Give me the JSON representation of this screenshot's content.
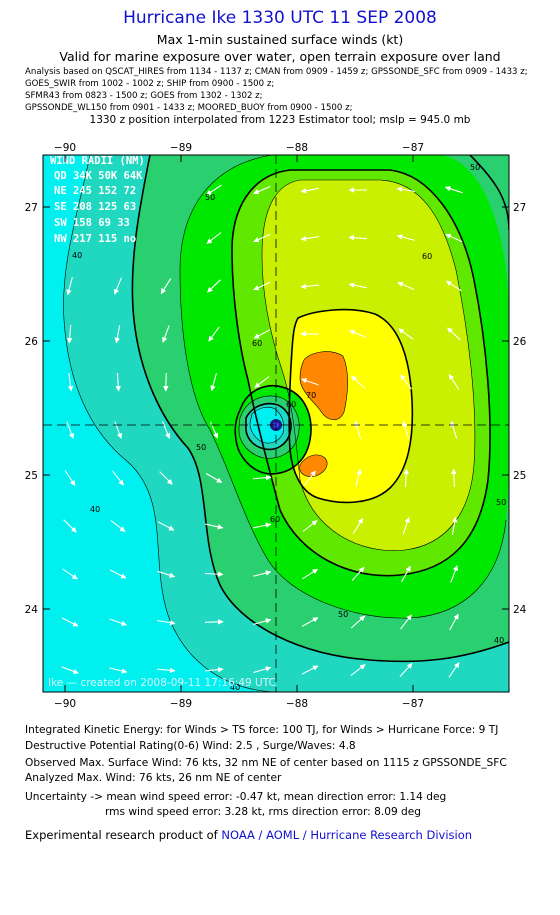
{
  "header": {
    "title": "Hurricane Ike 1330 UTC 11 SEP 2008",
    "subtitle1": "Max 1-min sustained surface winds (kt)",
    "subtitle2": "Valid for marine exposure over water, open terrain exposure over land",
    "sources": [
      "Analysis based on  QSCAT_HIRES from 1134 - 1137 z;  CMAN from 0909 - 1459 z;  GPSSONDE_SFC from 0909 - 1433 z;",
      "GOES_SWIR from 1002 - 1002 z;  SHIP from 0900 - 1500 z;",
      "SFMR43 from 0823 - 1500 z;  GOES from 1302 - 1302 z;",
      "GPSSONDE_WL150 from 0901 - 1433 z;  MOORED_BUOY from 0900 - 1500 z;"
    ],
    "position_note": "1330 z position interpolated from 1223 Estimator tool; mslp = 945.0 mb"
  },
  "map": {
    "lon_labels": [
      "−90",
      "−89",
      "−88",
      "−87"
    ],
    "lat_labels": [
      "27",
      "26",
      "25",
      "24"
    ],
    "contour_labels": [
      "50",
      "40",
      "50",
      "60",
      "60",
      "60",
      "70",
      "50",
      "60",
      "40",
      "50",
      "40",
      "50",
      "40"
    ],
    "wind_radii": {
      "title": "WIND RADII (NM)",
      "header": "QD 34K 50K 64K",
      "rows": [
        "NE 245 152  72",
        "SE 208 125  63",
        "SW 158  69  33",
        "NW 217 115  no"
      ]
    },
    "credit": "Ike — created on 2008-09-11 17:16:49 UTC",
    "colors": {
      "c30": "#00f0f0",
      "c40": "#20d8c0",
      "c50": "#2ad070",
      "c60": "#00e800",
      "c64": "#60e800",
      "c70": "#c8f000",
      "c80": "#ffff00",
      "c90": "#ff8800",
      "c100": "#ff2000",
      "center": "#1a1a80"
    }
  },
  "footer": {
    "ike": "Integrated Kinetic Energy:  for Winds > TS force: 100 TJ,  for Winds > Hurricane Force: 9 TJ",
    "dpr": "Destructive Potential Rating(0-6)   Wind: 2.5 , Surge/Waves: 4.8",
    "observed": "Observed Max. Surface Wind: 76 kts, 32 nm NE of center based on 1115 z GPSSONDE_SFC",
    "analyzed": "Analyzed Max. Wind: 76 kts, 26 nm NE of center",
    "uncert1": "Uncertainty -> mean wind speed error:  -0.47 kt,   mean direction error: 1.14 deg",
    "uncert2": "rms wind speed error: 3.28 kt,   rms direction error: 8.09 deg",
    "product_prefix": "Experimental research product of ",
    "product_org": "NOAA / AOML / Hurricane Research Division"
  }
}
